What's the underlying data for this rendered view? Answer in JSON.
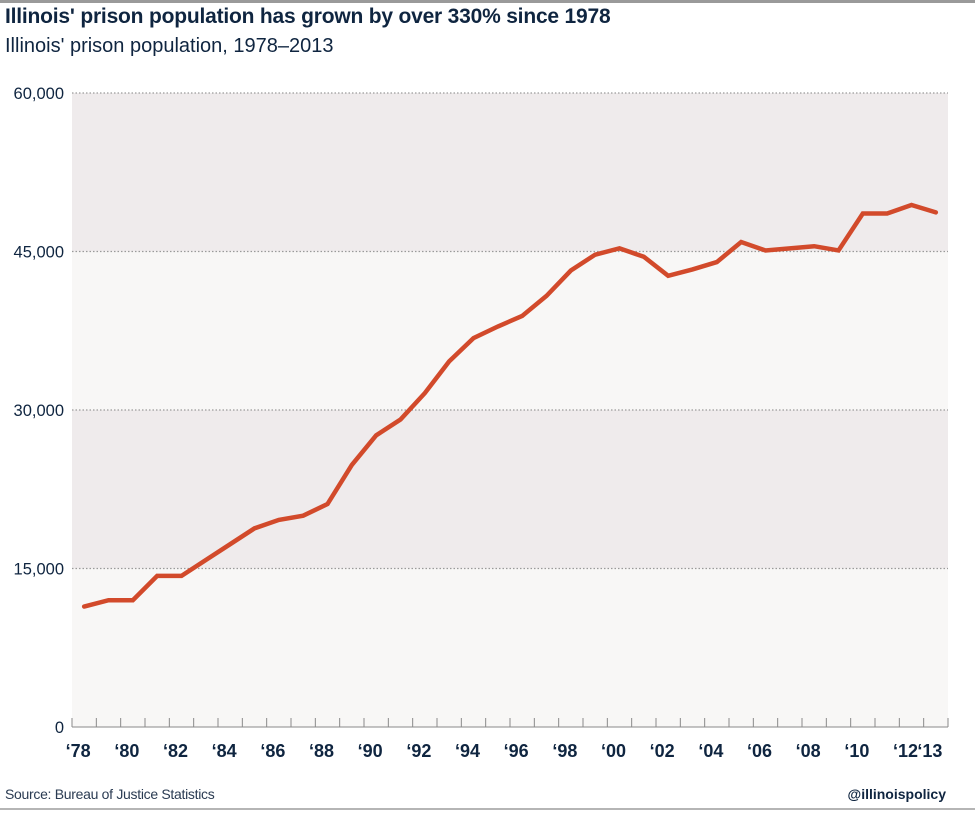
{
  "header": {
    "title": "Illinois' prison population has grown by over 330% since 1978",
    "subtitle": "Illinois' prison population, 1978–2013"
  },
  "footer": {
    "source": "Source: Bureau of Justice Statistics",
    "handle": "@illinoispolicy"
  },
  "colors": {
    "line": "#d24a2b",
    "text": "#0f2540",
    "band_dark": "#efebec",
    "band_light": "#f8f7f6",
    "grid": "#9a9a9a"
  },
  "chart_data": {
    "type": "line",
    "title": "Illinois' prison population has grown by over 330% since 1978",
    "subtitle": "Illinois' prison population, 1978–2013",
    "xlabel": "",
    "ylabel": "",
    "ylim": [
      0,
      60000
    ],
    "yticks": [
      0,
      15000,
      30000,
      45000,
      60000
    ],
    "ytick_labels": [
      "0",
      "15,000",
      "30,000",
      "45,000",
      "60,000"
    ],
    "xtick_labels": [
      "‘78",
      "‘80",
      "‘82",
      "‘84",
      "‘86",
      "‘88",
      "‘90",
      "‘92",
      "‘94",
      "‘96",
      "‘98",
      "‘00",
      "‘02",
      "‘04",
      "‘06",
      "‘08",
      "‘10",
      "‘12",
      "‘13"
    ],
    "xtick_years": [
      1978,
      1980,
      1982,
      1984,
      1986,
      1988,
      1990,
      1992,
      1994,
      1996,
      1998,
      2000,
      2002,
      2004,
      2006,
      2008,
      2010,
      2012,
      2013
    ],
    "grid": "horizontal dotted",
    "legend": "none",
    "x": [
      1978,
      1979,
      1980,
      1981,
      1982,
      1983,
      1984,
      1985,
      1986,
      1987,
      1988,
      1989,
      1990,
      1991,
      1992,
      1993,
      1994,
      1995,
      1996,
      1997,
      1998,
      1999,
      2000,
      2001,
      2002,
      2003,
      2004,
      2005,
      2006,
      2007,
      2008,
      2009,
      2010,
      2011,
      2012,
      2013
    ],
    "series": [
      {
        "name": "Illinois prison population",
        "values": [
          11400,
          12000,
          12000,
          14300,
          14300,
          15800,
          17300,
          18800,
          19600,
          20000,
          21100,
          24800,
          27600,
          29100,
          31600,
          34600,
          36800,
          37900,
          38900,
          40800,
          43200,
          44700,
          45300,
          44500,
          42700,
          43300,
          44000,
          45900,
          45100,
          45300,
          45500,
          45100,
          48600,
          48600,
          49400,
          48700
        ]
      }
    ],
    "source": "Source: Bureau of Justice Statistics"
  }
}
